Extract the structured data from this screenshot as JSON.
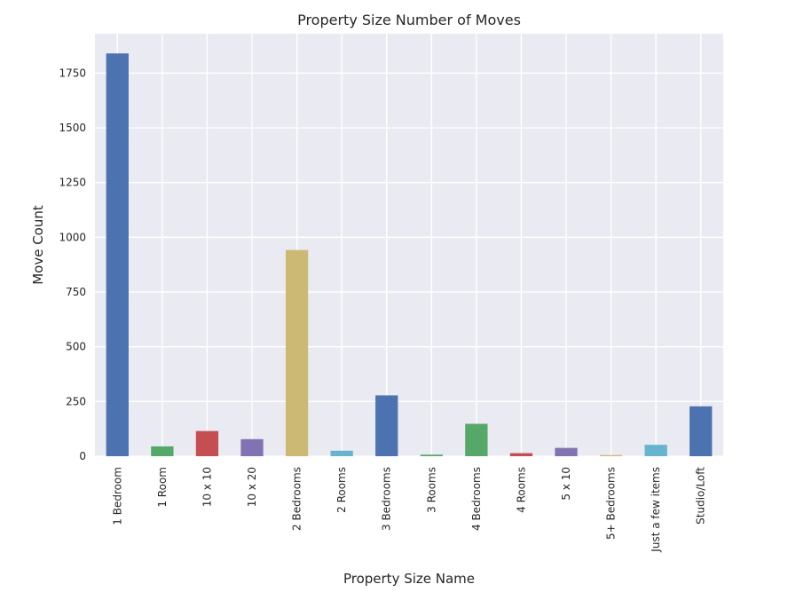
{
  "chart_data": {
    "type": "bar",
    "title": "Property Size Number of Moves",
    "xlabel": "Property Size Name",
    "ylabel": "Move Count",
    "categories": [
      "1 Bedroom",
      "1 Room",
      "10 x 10",
      "10 x 20",
      "2 Bedrooms",
      "2 Rooms",
      "3 Bedrooms",
      "3 Rooms",
      "4 Bedrooms",
      "4 Rooms",
      "5 x 10",
      "5+ Bedrooms",
      "Just a few items",
      "Studio/Loft"
    ],
    "values": [
      1840,
      45,
      115,
      78,
      942,
      25,
      278,
      7,
      148,
      14,
      38,
      5,
      52,
      228
    ],
    "bar_colors": [
      "#4c72b0",
      "#55a868",
      "#c44e52",
      "#8172b2",
      "#ccb974",
      "#64b5cd",
      "#4c72b0",
      "#55a868",
      "#55a868",
      "#c44e52",
      "#8172b2",
      "#ccb974",
      "#64b5cd",
      "#4c72b0"
    ],
    "ylim": [
      0,
      1930
    ],
    "yticks": [
      0,
      250,
      500,
      750,
      1000,
      1250,
      1500,
      1750
    ],
    "ytick_labels": [
      "0",
      "250",
      "500",
      "750",
      "1000",
      "1250",
      "1500",
      "1750"
    ],
    "grid": true,
    "background": "#eaeaf2",
    "grid_color": "#ffffff"
  }
}
